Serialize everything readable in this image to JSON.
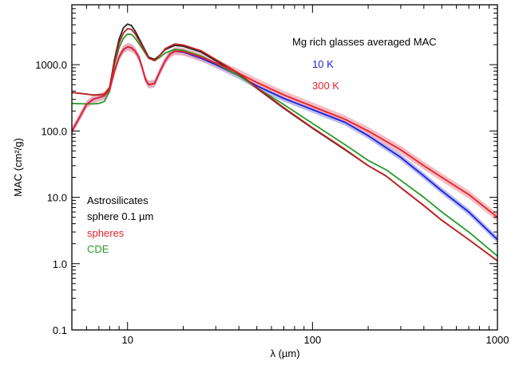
{
  "chart_data": {
    "type": "line",
    "xscale": "log",
    "yscale": "log",
    "xlim": [
      5,
      1000
    ],
    "ylim": [
      0.1,
      8000
    ],
    "xlabel": "λ (µm)",
    "ylabel": "MAC (cm²/g)",
    "x_ticks": [
      {
        "value": 10,
        "label": "10"
      },
      {
        "value": 100,
        "label": "100"
      },
      {
        "value": 1000,
        "label": "1000"
      }
    ],
    "y_ticks": [
      {
        "value": 0.1,
        "label": "0.1"
      },
      {
        "value": 1,
        "label": "1.0"
      },
      {
        "value": 10,
        "label": "10.0"
      },
      {
        "value": 100,
        "label": "100.0"
      },
      {
        "value": 1000,
        "label": "1000.0"
      }
    ],
    "legend_top": {
      "title": "Mg rich glasses averaged MAC",
      "entries": [
        {
          "label": "10 K",
          "color": "#1f1fe0"
        },
        {
          "label": "300 K",
          "color": "#e8202a"
        }
      ]
    },
    "legend_bottom": {
      "entries": [
        {
          "label": "Astrosilicates",
          "color": "#000000"
        },
        {
          "label": "sphere 0.1 µm",
          "color": "#000000"
        },
        {
          "label": "spheres",
          "color": "#e8202a"
        },
        {
          "label": "CDE",
          "color": "#2a9a2a"
        }
      ]
    },
    "series": [
      {
        "name": "10 K",
        "color": "#1f1fe0",
        "band_color": "#9fa8e8",
        "band_factor": 1.12,
        "points": [
          [
            5,
            100
          ],
          [
            5.5,
            160
          ],
          [
            6,
            250
          ],
          [
            6.5,
            300
          ],
          [
            7,
            320
          ],
          [
            7.5,
            340
          ],
          [
            8,
            420
          ],
          [
            8.5,
            800
          ],
          [
            9,
            1300
          ],
          [
            9.5,
            1700
          ],
          [
            10,
            1850
          ],
          [
            10.5,
            1800
          ],
          [
            11,
            1600
          ],
          [
            11.5,
            1300
          ],
          [
            12,
            900
          ],
          [
            12.5,
            600
          ],
          [
            13,
            500
          ],
          [
            14,
            520
          ],
          [
            15,
            800
          ],
          [
            16,
            1150
          ],
          [
            17,
            1450
          ],
          [
            18,
            1600
          ],
          [
            20,
            1550
          ],
          [
            25,
            1250
          ],
          [
            30,
            1000
          ],
          [
            40,
            680
          ],
          [
            50,
            480
          ],
          [
            70,
            310
          ],
          [
            100,
            210
          ],
          [
            150,
            135
          ],
          [
            200,
            85
          ],
          [
            300,
            40
          ],
          [
            400,
            21
          ],
          [
            500,
            12.5
          ],
          [
            700,
            6
          ],
          [
            1000,
            2.3
          ]
        ]
      },
      {
        "name": "300 K",
        "color": "#e8202a",
        "band_color": "#f2a8b0",
        "band_factor": 1.15,
        "points": [
          [
            5,
            100
          ],
          [
            5.5,
            160
          ],
          [
            6,
            250
          ],
          [
            6.5,
            300
          ],
          [
            7,
            320
          ],
          [
            7.5,
            340
          ],
          [
            8,
            420
          ],
          [
            8.5,
            800
          ],
          [
            9,
            1300
          ],
          [
            9.5,
            1700
          ],
          [
            10,
            1850
          ],
          [
            10.5,
            1800
          ],
          [
            11,
            1600
          ],
          [
            11.5,
            1300
          ],
          [
            12,
            900
          ],
          [
            12.5,
            600
          ],
          [
            13,
            500
          ],
          [
            14,
            520
          ],
          [
            15,
            800
          ],
          [
            16,
            1150
          ],
          [
            17,
            1450
          ],
          [
            18,
            1600
          ],
          [
            20,
            1580
          ],
          [
            25,
            1300
          ],
          [
            30,
            1060
          ],
          [
            40,
            740
          ],
          [
            50,
            540
          ],
          [
            70,
            350
          ],
          [
            100,
            235
          ],
          [
            150,
            150
          ],
          [
            200,
            100
          ],
          [
            300,
            52
          ],
          [
            400,
            30
          ],
          [
            500,
            20
          ],
          [
            700,
            11
          ],
          [
            1000,
            5
          ]
        ]
      },
      {
        "name": "",
        "color": "#222222",
        "points": [
          [
            5,
            380
          ],
          [
            5.5,
            370
          ],
          [
            6,
            360
          ],
          [
            6.5,
            350
          ],
          [
            7,
            350
          ],
          [
            7.5,
            360
          ],
          [
            8,
            450
          ],
          [
            8.5,
            1200
          ],
          [
            9,
            2400
          ],
          [
            9.5,
            3600
          ],
          [
            10,
            4100
          ],
          [
            10.5,
            3900
          ],
          [
            11,
            3200
          ],
          [
            12,
            2000
          ],
          [
            13,
            1300
          ],
          [
            14,
            1200
          ],
          [
            15,
            1400
          ],
          [
            16,
            1700
          ],
          [
            18,
            1950
          ],
          [
            20,
            1900
          ],
          [
            25,
            1550
          ],
          [
            30,
            1150
          ],
          [
            40,
            720
          ],
          [
            50,
            440
          ],
          [
            70,
            220
          ],
          [
            100,
            110
          ],
          [
            150,
            52
          ],
          [
            200,
            30
          ],
          [
            250,
            21
          ],
          [
            300,
            14
          ],
          [
            400,
            7.5
          ],
          [
            500,
            4.5
          ],
          [
            700,
            2.3
          ],
          [
            1000,
            1.1
          ]
        ]
      },
      {
        "name": "",
        "color": "#c42020",
        "points": [
          [
            5,
            380
          ],
          [
            5.5,
            370
          ],
          [
            6,
            360
          ],
          [
            6.5,
            350
          ],
          [
            7,
            350
          ],
          [
            7.5,
            360
          ],
          [
            8,
            450
          ],
          [
            8.5,
            1100
          ],
          [
            9,
            2100
          ],
          [
            9.5,
            3000
          ],
          [
            10,
            3500
          ],
          [
            10.5,
            3400
          ],
          [
            11,
            2900
          ],
          [
            12,
            1900
          ],
          [
            13,
            1250
          ],
          [
            14,
            1150
          ],
          [
            15,
            1400
          ],
          [
            16,
            1750
          ],
          [
            18,
            2050
          ],
          [
            20,
            1980
          ],
          [
            25,
            1620
          ],
          [
            30,
            1200
          ],
          [
            40,
            740
          ],
          [
            50,
            450
          ],
          [
            70,
            225
          ],
          [
            100,
            112
          ],
          [
            150,
            53
          ],
          [
            200,
            30
          ],
          [
            250,
            21
          ],
          [
            300,
            14
          ],
          [
            400,
            7.5
          ],
          [
            500,
            4.5
          ],
          [
            700,
            2.3
          ],
          [
            1000,
            1.1
          ]
        ]
      },
      {
        "name": "",
        "color": "#2a9a2a",
        "points": [
          [
            5,
            260
          ],
          [
            5.5,
            258
          ],
          [
            6,
            256
          ],
          [
            6.5,
            256
          ],
          [
            7,
            260
          ],
          [
            7.5,
            280
          ],
          [
            8,
            400
          ],
          [
            8.5,
            1000
          ],
          [
            9,
            1800
          ],
          [
            9.5,
            2500
          ],
          [
            10,
            2900
          ],
          [
            10.5,
            2850
          ],
          [
            11,
            2500
          ],
          [
            12,
            1750
          ],
          [
            13,
            1250
          ],
          [
            14,
            1150
          ],
          [
            15,
            1300
          ],
          [
            16,
            1500
          ],
          [
            18,
            1700
          ],
          [
            20,
            1650
          ],
          [
            25,
            1350
          ],
          [
            30,
            1050
          ],
          [
            40,
            680
          ],
          [
            50,
            450
          ],
          [
            70,
            250
          ],
          [
            100,
            130
          ],
          [
            150,
            62
          ],
          [
            200,
            36
          ],
          [
            250,
            26
          ],
          [
            300,
            18
          ],
          [
            400,
            10
          ],
          [
            500,
            6
          ],
          [
            700,
            3
          ],
          [
            1000,
            1.3
          ]
        ]
      }
    ],
    "grid": false
  }
}
